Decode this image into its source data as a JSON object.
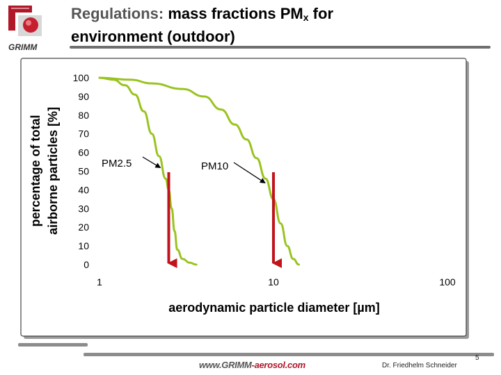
{
  "header": {
    "title_prefix": "Regulations:",
    "title_main": "mass fractions PM",
    "title_sub": "x",
    "title_suffix": " for",
    "title_line2": "environment (outdoor)",
    "logo_text": "GRIMM"
  },
  "footer": {
    "url_part1": "www.GRIMM",
    "url_part2": "-aerosol.com",
    "author": "Dr. Friedhelm Schneider",
    "page_number": "5"
  },
  "colors": {
    "curve": "#9ac320",
    "arrow": "#c0131b",
    "accent_red": "#b0182a"
  },
  "chart_data": {
    "type": "line",
    "xscale": "log",
    "xlim": [
      1,
      100
    ],
    "ylim": [
      0,
      100
    ],
    "xticks": [
      "1",
      "10",
      "100"
    ],
    "yticks": [
      "0",
      "10",
      "20",
      "30",
      "40",
      "50",
      "60",
      "70",
      "80",
      "90",
      "100"
    ],
    "xlabel": "aerodynamic particle diameter [µm]",
    "ylabel_line1": "percentage of total",
    "ylabel_line2": "airborne particles [%]",
    "series": [
      {
        "name": "PM2.5",
        "x": [
          1,
          1.2,
          1.4,
          1.6,
          1.8,
          2.0,
          2.2,
          2.4,
          2.5,
          2.6,
          2.7,
          2.8,
          3.0,
          3.3,
          3.6
        ],
        "y": [
          100,
          99,
          96,
          91,
          82,
          70,
          58,
          46,
          40,
          30,
          18,
          8,
          3,
          1,
          0
        ]
      },
      {
        "name": "PM10",
        "x": [
          1,
          1.5,
          2,
          3,
          4,
          5,
          6,
          7,
          8,
          9,
          10,
          11,
          12,
          13,
          14
        ],
        "y": [
          100,
          99,
          97,
          94,
          90,
          83,
          75,
          67,
          57,
          46,
          35,
          22,
          10,
          3,
          0
        ]
      }
    ],
    "annotations": [
      {
        "label": "PM2.5",
        "cutoff": 2.5
      },
      {
        "label": "PM10",
        "cutoff": 10
      }
    ]
  }
}
